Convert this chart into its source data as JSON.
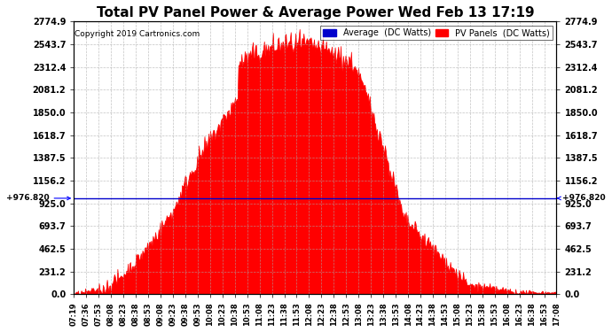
{
  "title": "Total PV Panel Power & Average Power Wed Feb 13 17:19",
  "copyright": "Copyright 2019 Cartronics.com",
  "legend_avg_label": "Average  (DC Watts)",
  "legend_pv_label": "PV Panels  (DC Watts)",
  "legend_avg_color": "#0000cc",
  "legend_pv_color": "#ff0000",
  "avg_line_value": 976.82,
  "avg_label_left": "+976.820",
  "avg_label_right": "+976.820",
  "y_ticks": [
    0.0,
    231.2,
    462.5,
    693.7,
    925.0,
    1156.2,
    1387.5,
    1618.7,
    1850.0,
    2081.2,
    2312.4,
    2543.7,
    2774.9
  ],
  "y_max": 2774.9,
  "y_min": 0.0,
  "bg_color": "#ffffff",
  "plot_bg_color": "#ffffff",
  "fill_color": "#ff0000",
  "grid_color": "#aaaaaa",
  "x_tick_labels": [
    "07:19",
    "07:36",
    "07:53",
    "08:08",
    "08:23",
    "08:38",
    "08:53",
    "09:08",
    "09:23",
    "09:38",
    "09:53",
    "10:08",
    "10:23",
    "10:38",
    "10:53",
    "11:08",
    "11:23",
    "11:38",
    "11:53",
    "12:08",
    "12:23",
    "12:38",
    "12:53",
    "13:08",
    "13:23",
    "13:38",
    "13:53",
    "14:08",
    "14:23",
    "14:38",
    "14:53",
    "15:08",
    "15:23",
    "15:38",
    "15:53",
    "16:08",
    "16:23",
    "16:38",
    "16:53",
    "17:08"
  ]
}
